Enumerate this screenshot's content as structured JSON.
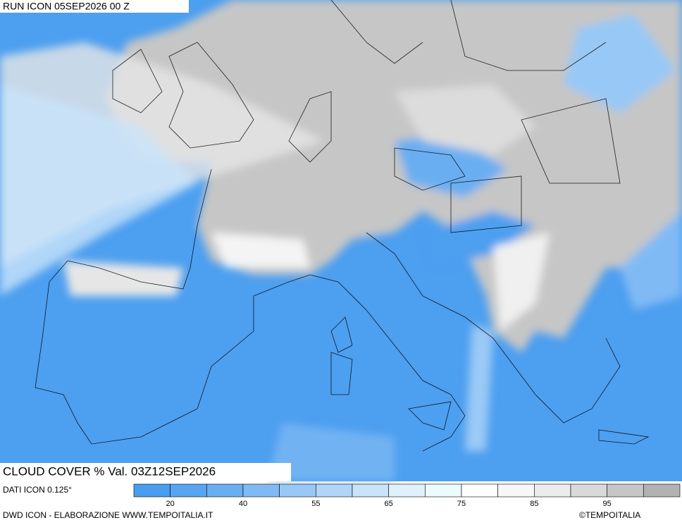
{
  "header": {
    "run": "RUN ICON 05SEP2026 00 Z"
  },
  "title": "CLOUD COVER % Val. 03Z12SEP2026",
  "data_source": "DATI ICON 0.125°",
  "legend": {
    "colors": [
      "#4a9cee",
      "#58a4f0",
      "#6aaef2",
      "#80baf4",
      "#98c8f6",
      "#b0d5f8",
      "#c9e3fa",
      "#e0f0fc",
      "#ecfbff",
      "#ffffff",
      "#f7f7f7",
      "#ececec",
      "#d9d9d9",
      "#c6c6c6",
      "#b2b2b2"
    ],
    "labels": [
      20,
      40,
      55,
      65,
      75,
      85,
      95
    ]
  },
  "footer": {
    "left": "DWD ICON - ELABORAZIONE WWW.TEMPOITALIA.IT",
    "right": "©TEMPOITALIA"
  }
}
